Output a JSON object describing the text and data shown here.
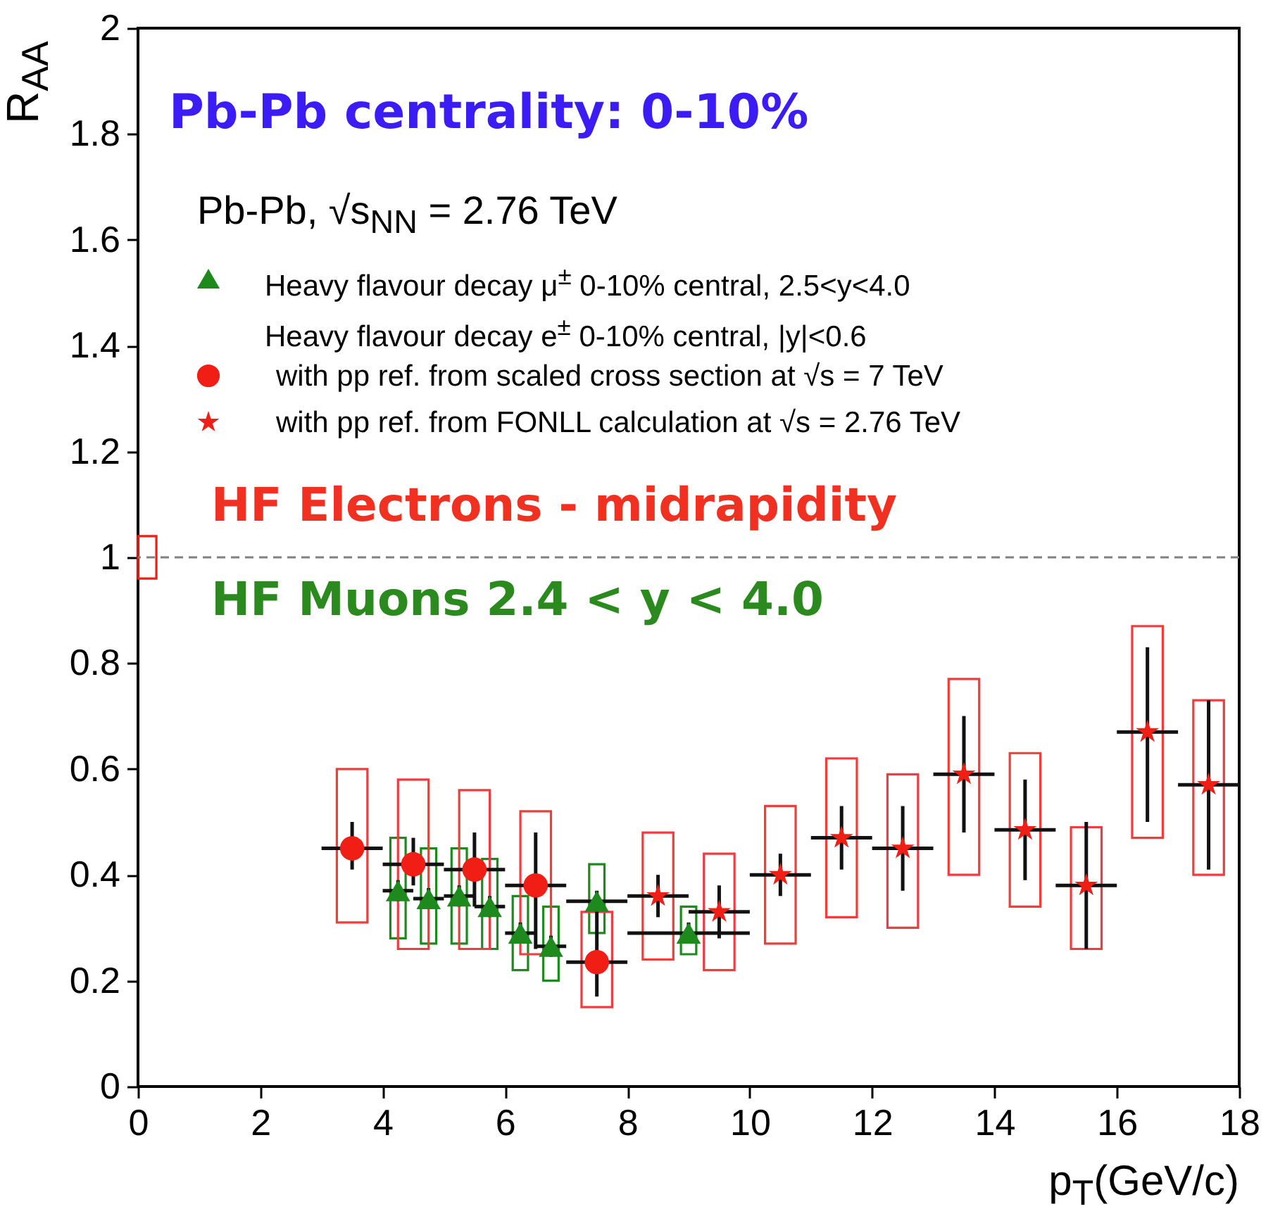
{
  "chart_data": {
    "type": "scatter",
    "xlabel": "p$_{T}$(GeV/c)",
    "ylabel": "R$_{AA}$",
    "xlim": [
      0,
      18
    ],
    "xticks": [
      0,
      2,
      4,
      6,
      8,
      10,
      12,
      14,
      16,
      18
    ],
    "ylim": [
      0,
      2
    ],
    "yticks": [
      0,
      0.2,
      0.4,
      0.6,
      0.8,
      1,
      1.2,
      1.4,
      1.6,
      1.8,
      2
    ],
    "grid": false,
    "legend": "top",
    "annotations": [
      "Pb-Pb centrality: 0-10%",
      "Pb-Pb, √s$_{NN}$ = 2.76 TeV",
      "Heavy flavour decay e$^{±}$ 0-10% central, |y|<0.6",
      "HF Electrons - midrapidity",
      "HF Muons 2.4 < y < 4.0"
    ],
    "ref_lines": [
      {
        "axis": "y",
        "value": 1,
        "color": "#808080",
        "line_style": "dashed"
      }
    ],
    "series": [
      {
        "type": "bar",
        "color": "#1e8a1e",
        "x": [
          4.25,
          4.75,
          5.25,
          5.75,
          6.25,
          6.75,
          7.5,
          9.0
        ],
        "base": [
          0.28,
          0.27,
          0.27,
          0.26,
          0.22,
          0.2,
          0.29,
          0.25
        ],
        "values": [
          0.19,
          0.18,
          0.18,
          0.17,
          0.14,
          0.14,
          0.13,
          0.09
        ]
      },
      {
        "type": "bar",
        "color": "#f03c3c",
        "x": [
          3.5,
          4.5,
          5.5,
          6.5,
          7.5,
          8.5,
          9.5,
          10.5,
          11.5,
          12.5,
          13.5,
          14.5,
          15.5,
          16.5,
          17.5
        ],
        "base": [
          0.31,
          0.26,
          0.26,
          0.25,
          0.15,
          0.24,
          0.22,
          0.27,
          0.32,
          0.3,
          0.4,
          0.34,
          0.26,
          0.47,
          0.4
        ],
        "values": [
          0.29,
          0.32,
          0.3,
          0.27,
          0.18,
          0.24,
          0.22,
          0.26,
          0.3,
          0.29,
          0.37,
          0.29,
          0.23,
          0.4,
          0.33
        ]
      },
      {
        "type": "bar",
        "color": "#f01e14",
        "x": [
          0.15
        ],
        "base": [
          0.96
        ],
        "values": [
          0.08
        ]
      },
      {
        "name": "Heavy flavour decay μ$^{±}$ 0-10% central, 2.5<y<4.0",
        "color": "#1e8a1e",
        "marker": "triangle",
        "x": [
          4.25,
          4.75,
          5.25,
          5.75,
          6.25,
          6.75,
          7.5,
          9.0
        ],
        "values": [
          0.37,
          0.355,
          0.36,
          0.34,
          0.29,
          0.265,
          0.35,
          0.29
        ],
        "errors": [
          0.02,
          0.02,
          0.02,
          0.02,
          0.02,
          0.02,
          0.02,
          0.02
        ],
        "xerrors": [
          0.25,
          0.25,
          0.25,
          0.25,
          0.25,
          0.25,
          0.5,
          1
        ]
      },
      {
        "name": "with pp ref. from scaled cross section at √s = 7 TeV",
        "color": "#f01e14",
        "marker": "circle",
        "x": [
          3.5,
          4.5,
          5.5,
          6.5,
          7.5
        ],
        "values": [
          0.45,
          0.42,
          0.41,
          0.38,
          0.235
        ],
        "errors": [
          [
            0.41,
            0.5
          ],
          [
            0.38,
            0.47
          ],
          [
            0.34,
            0.48
          ],
          [
            0.26,
            0.48
          ],
          [
            0.17,
            0.33
          ]
        ],
        "xerrors": [
          0.5,
          0.5,
          0.5,
          0.5,
          0.5
        ]
      },
      {
        "name": "with pp ref. from FONLL calculation at √s = 2.76 TeV",
        "color": "#f01e14",
        "marker": "star",
        "x": [
          8.5,
          9.5,
          10.5,
          11.5,
          12.5,
          13.5,
          14.5,
          15.5,
          16.5,
          17.5
        ],
        "values": [
          0.36,
          0.33,
          0.4,
          0.47,
          0.45,
          0.59,
          0.485,
          0.38,
          0.67,
          0.57
        ],
        "errors": [
          [
            0.32,
            0.4
          ],
          [
            0.28,
            0.38
          ],
          [
            0.36,
            0.44
          ],
          [
            0.41,
            0.53
          ],
          [
            0.37,
            0.53
          ],
          [
            0.48,
            0.7
          ],
          [
            0.39,
            0.58
          ],
          [
            0.26,
            0.5
          ],
          [
            0.5,
            0.83
          ],
          [
            0.41,
            0.73
          ]
        ],
        "xerrors": [
          0.5,
          0.5,
          0.5,
          0.5,
          0.5,
          0.5,
          0.5,
          0.5,
          0.5,
          0.5
        ]
      }
    ]
  }
}
